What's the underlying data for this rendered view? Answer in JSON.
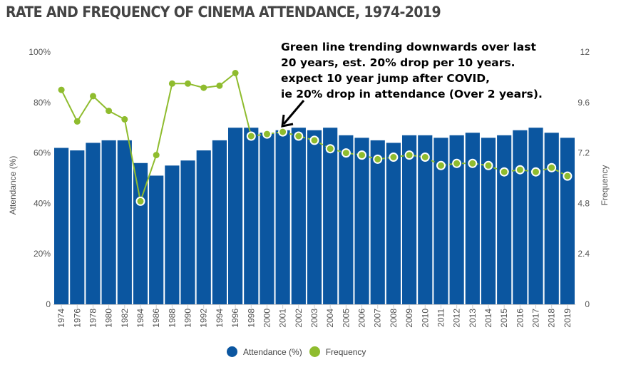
{
  "colors": {
    "attendance": "#0b56a0",
    "frequency": "#8fbc2e"
  },
  "chart_data": {
    "type": "bar",
    "title": "RATE AND FREQUENCY OF CINEMA ATTENDANCE, 1974-2019",
    "annotation": [
      "Green line trending downwards over last",
      "20 years, est. 20% drop per 10 years.",
      "expect 10 year jump after COVID,",
      "ie 20% drop in attendance (Over 2 years)."
    ],
    "categories": [
      "1974",
      "1976",
      "1978",
      "1980",
      "1982",
      "1984",
      "1986",
      "1988",
      "1990",
      "1992",
      "1994",
      "1996",
      "1998",
      "2000",
      "2001",
      "2002",
      "2003",
      "2004",
      "2005",
      "2006",
      "2007",
      "2008",
      "2009",
      "2010",
      "2011",
      "2012",
      "2013",
      "2014",
      "2015",
      "2016",
      "2017",
      "2018",
      "2019"
    ],
    "series": [
      {
        "name": "Attendance (%)",
        "type": "bar",
        "axis": "left",
        "values": [
          62,
          61,
          64,
          65,
          65,
          56,
          51,
          55,
          57,
          61,
          65,
          70,
          70,
          68,
          69,
          70,
          69,
          70,
          67,
          66,
          65,
          64,
          67,
          67,
          66,
          67,
          68,
          66,
          67,
          69,
          70,
          68,
          66
        ]
      },
      {
        "name": "Frequency",
        "type": "line",
        "axis": "right",
        "values": [
          10.2,
          8.7,
          9.9,
          9.2,
          8.8,
          4.9,
          7.1,
          10.5,
          10.5,
          10.3,
          10.4,
          11.0,
          8.0,
          8.1,
          8.2,
          8.0,
          7.8,
          7.4,
          7.2,
          7.1,
          6.9,
          7.0,
          7.1,
          7.0,
          6.6,
          6.7,
          6.7,
          6.6,
          6.3,
          6.4,
          6.3,
          6.5,
          6.1
        ]
      }
    ],
    "ylabel": "Attendance (%)",
    "y2label": "Frequency",
    "ylim": [
      0,
      100
    ],
    "y2lim": [
      0,
      12
    ],
    "yticks": [
      "0",
      "20%",
      "40%",
      "60%",
      "80%",
      "100%"
    ],
    "y2ticks": [
      "0",
      "2.4",
      "4.8",
      "7.2",
      "9.6",
      "12"
    ],
    "grid": false,
    "legend": "bottom-center"
  }
}
